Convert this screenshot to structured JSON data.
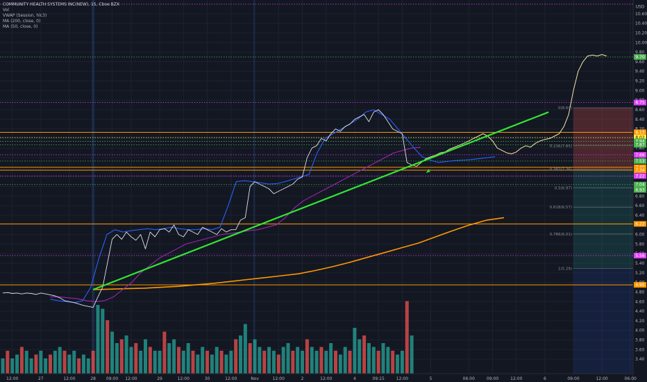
{
  "header": {
    "symbol_line": "COMMUNITY HEALTH SYSTEMS INC(NEW), 15, Cboe BZX",
    "indicators": [
      "Vol",
      "VWAP (Session, hlc3)",
      "MA (200, close, 0)",
      "MA (50, close, 0)"
    ]
  },
  "currency_label": "USD",
  "chart_data": {
    "type": "line",
    "title": "COMMUNITY HEALTH SYSTEMS INC(NEW), 15, Cboe BZX",
    "xlabel": "",
    "ylabel": "",
    "ylim": [
      3.2,
      10.8
    ],
    "y_ticks": [
      "10.60",
      "10.40",
      "10.20",
      "10.00",
      "9.80",
      "9.60",
      "9.40",
      "9.20",
      "9.00",
      "8.80",
      "8.60",
      "8.40",
      "8.20",
      "8.00",
      "7.80",
      "7.60",
      "7.40",
      "7.20",
      "7.00",
      "6.80",
      "6.60",
      "6.40",
      "6.20",
      "6.00",
      "5.80",
      "5.60",
      "5.40",
      "5.20",
      "5.00",
      "4.80",
      "4.60",
      "4.40",
      "4.20",
      "4.00",
      "3.80",
      "3.60",
      "3.40"
    ],
    "x_ticks": [
      "12:00",
      "27",
      "12:00",
      "28",
      "09:00",
      "12:00",
      "29",
      "12:00",
      "30",
      "12:00",
      "Nov",
      "12:00",
      "2",
      "12:00",
      "4",
      "09:15",
      "12:00",
      "5",
      "06:00",
      "09:00",
      "12:00",
      "6",
      "09:00",
      "12:00",
      "06:00"
    ],
    "x_tick_index": [
      2,
      8,
      14,
      19,
      23,
      27,
      33,
      38,
      43,
      48,
      53,
      58,
      63,
      68,
      74,
      79,
      84,
      90,
      98,
      103,
      108,
      114,
      120,
      126,
      132
    ],
    "price_path": [
      4.78,
      4.79,
      4.77,
      4.78,
      4.76,
      4.78,
      4.77,
      4.75,
      4.78,
      4.76,
      4.74,
      4.72,
      4.68,
      4.62,
      4.6,
      4.58,
      4.55,
      4.52,
      4.5,
      4.48,
      4.7,
      4.9,
      5.4,
      5.9,
      6.0,
      5.9,
      6.05,
      5.95,
      5.88,
      6.0,
      5.7,
      6.05,
      5.95,
      6.1,
      6.12,
      6.05,
      6.2,
      6.0,
      5.95,
      6.1,
      6.05,
      6.0,
      6.15,
      6.1,
      6.05,
      6.0,
      6.12,
      6.05,
      6.1,
      6.1,
      6.3,
      6.35,
      7.0,
      7.1,
      7.05,
      7.0,
      6.95,
      6.85,
      6.9,
      6.95,
      7.0,
      7.05,
      7.15,
      7.2,
      7.6,
      7.8,
      7.85,
      8.0,
      7.95,
      8.1,
      8.2,
      8.15,
      8.25,
      8.3,
      8.4,
      8.45,
      8.5,
      8.35,
      8.55,
      8.6,
      8.5,
      8.35,
      8.2,
      8.15,
      8.1,
      7.5,
      7.45,
      7.42
    ],
    "projection_path": [
      7.42,
      7.5,
      7.58,
      7.62,
      7.65,
      7.7,
      7.72,
      7.78,
      7.82,
      7.86,
      7.9,
      7.95,
      8.0,
      8.05,
      8.1,
      8.05,
      7.95,
      7.8,
      7.75,
      7.7,
      7.68,
      7.72,
      7.8,
      7.85,
      7.82,
      7.9,
      7.95,
      7.98,
      8.0,
      8.05,
      8.1,
      8.25,
      8.5,
      9.0,
      9.4,
      9.6,
      9.72,
      9.74,
      9.72,
      9.75,
      9.72
    ],
    "vwap_path": [
      4.65,
      4.62,
      4.6,
      4.58,
      4.62,
      4.9,
      5.5,
      6.0,
      6.1,
      6.05,
      6.08,
      6.1,
      6.12,
      6.1,
      6.12,
      6.15,
      6.12,
      6.1,
      6.1,
      6.12,
      6.1,
      6.15,
      6.6,
      7.1,
      7.12,
      7.1,
      7.08,
      7.05,
      7.06,
      7.1,
      7.15,
      7.2,
      7.25,
      7.7,
      8.0,
      8.1,
      8.2,
      8.3,
      8.4,
      8.55,
      8.6,
      8.5,
      8.4,
      8.2,
      8.0,
      7.8,
      7.62,
      7.55,
      7.5,
      7.52,
      7.54,
      7.55,
      7.56,
      7.58,
      7.6,
      7.62
    ],
    "ma50_path": [
      4.7,
      4.7,
      4.68,
      4.66,
      4.62,
      4.6,
      4.62,
      4.7,
      4.85,
      5.0,
      5.2,
      5.35,
      5.5,
      5.6,
      5.7,
      5.8,
      5.85,
      5.9,
      5.95,
      6.0,
      6.02,
      6.05,
      6.08,
      6.1,
      6.15,
      6.2,
      6.35,
      6.55,
      6.7,
      6.8,
      6.9,
      7.0,
      7.1,
      7.2,
      7.3,
      7.4,
      7.5,
      7.6,
      7.7,
      7.75,
      7.8,
      7.82
    ],
    "ma200_path": [
      4.85,
      4.86,
      4.87,
      4.88,
      4.9,
      4.92,
      4.95,
      4.98,
      5.02,
      5.06,
      5.1,
      5.14,
      5.18,
      5.25,
      5.33,
      5.42,
      5.52,
      5.62,
      5.72,
      5.82,
      5.95,
      6.08,
      6.2,
      6.3,
      6.35
    ],
    "volume_bars": [
      0.2,
      0.3,
      0.2,
      0.25,
      0.35,
      0.3,
      0.2,
      0.25,
      0.3,
      0.2,
      0.25,
      0.3,
      0.35,
      0.3,
      0.25,
      0.3,
      0.2,
      0.25,
      0.2,
      0.3,
      0.9,
      0.85,
      0.7,
      0.55,
      0.4,
      0.45,
      0.5,
      0.35,
      0.4,
      0.3,
      0.45,
      0.35,
      0.3,
      0.3,
      0.55,
      0.4,
      0.45,
      0.35,
      0.3,
      0.4,
      0.3,
      0.25,
      0.35,
      0.3,
      0.25,
      0.35,
      0.3,
      0.25,
      0.3,
      0.45,
      0.5,
      0.65,
      0.4,
      0.45,
      0.35,
      0.3,
      0.35,
      0.3,
      0.25,
      0.35,
      0.4,
      0.3,
      0.35,
      0.3,
      0.45,
      0.35,
      0.3,
      0.35,
      0.3,
      0.4,
      0.3,
      0.25,
      0.35,
      0.3,
      0.6,
      0.45,
      0.5,
      0.4,
      0.35,
      0.3,
      0.4,
      0.35,
      0.3,
      0.25,
      0.3,
      0.95,
      0.5
    ],
    "horizontal_levels": [
      {
        "price": 10.8,
        "color": "#e040fb",
        "style": "dotted"
      },
      {
        "price": 9.7,
        "color": "#4caf50",
        "style": "dotted"
      },
      {
        "price": 8.75,
        "color": "#e040fb",
        "style": "dotted"
      },
      {
        "price": 8.13,
        "color": "#ff9800",
        "style": "solid"
      },
      {
        "price": 8.02,
        "color": "#ffeb3b",
        "style": "dotted"
      },
      {
        "price": 7.94,
        "color": "#4caf50",
        "style": "dotted"
      },
      {
        "price": 7.87,
        "color": "#4caf50",
        "style": "dotted"
      },
      {
        "price": 7.66,
        "color": "#e040fb",
        "style": "dotted"
      },
      {
        "price": 7.53,
        "color": "#4caf50",
        "style": "dotted"
      },
      {
        "price": 7.4,
        "color": "#ff9800",
        "style": "solid"
      },
      {
        "price": 7.34,
        "color": "#ff9800",
        "style": "solid"
      },
      {
        "price": 7.22,
        "color": "#e040fb",
        "style": "dotted"
      },
      {
        "price": 7.04,
        "color": "#4caf50",
        "style": "dotted"
      },
      {
        "price": 6.22,
        "color": "#ff9800",
        "style": "solid"
      },
      {
        "price": 5.56,
        "color": "#e040fb",
        "style": "dotted"
      },
      {
        "price": 4.95,
        "color": "#ff9800",
        "style": "solid"
      }
    ],
    "price_tags": [
      {
        "text": "USD",
        "price": 10.75,
        "color": "#131722",
        "text_color": "#b2b5be"
      },
      {
        "text": "9.70",
        "price": 9.7,
        "color": "#4caf50",
        "text_color": "#ffffff"
      },
      {
        "text": "8.75",
        "price": 8.75,
        "color": "#e040fb",
        "text_color": "#ffffff"
      },
      {
        "text": "8.13",
        "price": 8.13,
        "color": "#ff9800",
        "text_color": "#ffffff"
      },
      {
        "text": "8.02",
        "price": 8.02,
        "color": "#ffeb3b",
        "text_color": "#131722"
      },
      {
        "text": "7.94",
        "price": 7.94,
        "color": "#4caf50",
        "text_color": "#ffffff"
      },
      {
        "text": "7.87",
        "price": 7.87,
        "color": "#4caf50",
        "text_color": "#ffffff"
      },
      {
        "text": "7.66",
        "price": 7.66,
        "color": "#e040fb",
        "text_color": "#ffffff"
      },
      {
        "text": "7.53",
        "price": 7.53,
        "color": "#4caf50",
        "text_color": "#ffffff"
      },
      {
        "text": "7.40",
        "price": 7.4,
        "color": "#ff9800",
        "text_color": "#ffffff"
      },
      {
        "text": "7.34",
        "price": 7.34,
        "color": "#ff9800",
        "text_color": "#ffffff"
      },
      {
        "text": "7.22",
        "price": 7.22,
        "color": "#e040fb",
        "text_color": "#ffffff"
      },
      {
        "text": "7.04",
        "price": 7.04,
        "color": "#4caf50",
        "text_color": "#ffffff"
      },
      {
        "text": "6.93",
        "price": 6.93,
        "color": "#4caf50",
        "text_color": "#ffffff"
      },
      {
        "text": "6.22",
        "price": 6.22,
        "color": "#ff9800",
        "text_color": "#ffffff"
      },
      {
        "text": "5.56",
        "price": 5.56,
        "color": "#e040fb",
        "text_color": "#ffffff"
      },
      {
        "text": "4.95",
        "price": 4.95,
        "color": "#ff9800",
        "text_color": "#ffffff"
      }
    ],
    "fib_levels": [
      {
        "label": "0(8.64)",
        "price": 8.64
      },
      {
        "label": "0.236(7.85)",
        "price": 7.85
      },
      {
        "label": "0.382(7.36)",
        "price": 7.36
      },
      {
        "label": "0.5(6.97)",
        "price": 6.97
      },
      {
        "label": "0.618(6.57)",
        "price": 6.57
      },
      {
        "label": "0.786(6.01)",
        "price": 6.01
      },
      {
        "label": "1(5.29)",
        "price": 5.29
      }
    ],
    "trendline": {
      "from": [
        19,
        4.85
      ],
      "to": [
        106,
        8.55
      ],
      "color": "#32e632"
    },
    "colors": {
      "background": "#131722",
      "price": "#e0e3eb",
      "projection": "#f5e6a8",
      "vwap": "#2962ff",
      "ma50": "#9c27b0",
      "ma200": "#ff9800",
      "vol_up": "#26a69a",
      "vol_down": "#ef5350"
    },
    "grid": true,
    "legend": "top-left"
  }
}
